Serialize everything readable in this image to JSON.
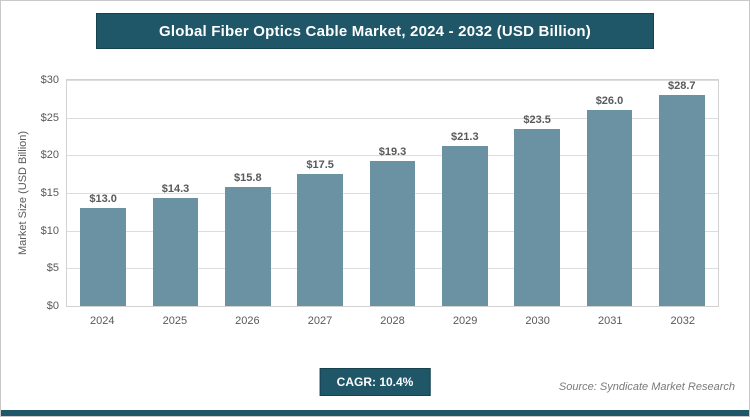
{
  "header": {
    "title": "Global Fiber Optics Cable Market, 2024 - 2032 (USD Billion)"
  },
  "chart_data": {
    "type": "bar",
    "title": "Global Fiber Optics Cable Market, 2024 - 2032 (USD Billion)",
    "categories": [
      "2024",
      "2025",
      "2026",
      "2027",
      "2028",
      "2029",
      "2030",
      "2031",
      "2032"
    ],
    "values": [
      13.0,
      14.3,
      15.8,
      17.5,
      19.3,
      21.3,
      23.5,
      26.0,
      28.7
    ],
    "value_labels": [
      "$13.0",
      "$14.3",
      "$15.8",
      "$17.5",
      "$19.3",
      "$21.3",
      "$23.5",
      "$26.0",
      "$28.7"
    ],
    "xlabel": "",
    "ylabel": "Market Size (USD Billion)",
    "ylim": [
      0,
      30
    ],
    "ytick_labels": [
      "$0",
      "$5",
      "$10",
      "$15",
      "$20",
      "$25",
      "$30"
    ],
    "grid": true,
    "legend": "none",
    "bar_color": "#6b92a2"
  },
  "footer": {
    "cagr_label": "CAGR: 10.4%",
    "source": "Source: Syndicate Market Research"
  },
  "colors": {
    "header_bg": "#1f5668",
    "bar": "#6b92a2",
    "gridline": "#dddddd",
    "axis_text": "#595959"
  }
}
